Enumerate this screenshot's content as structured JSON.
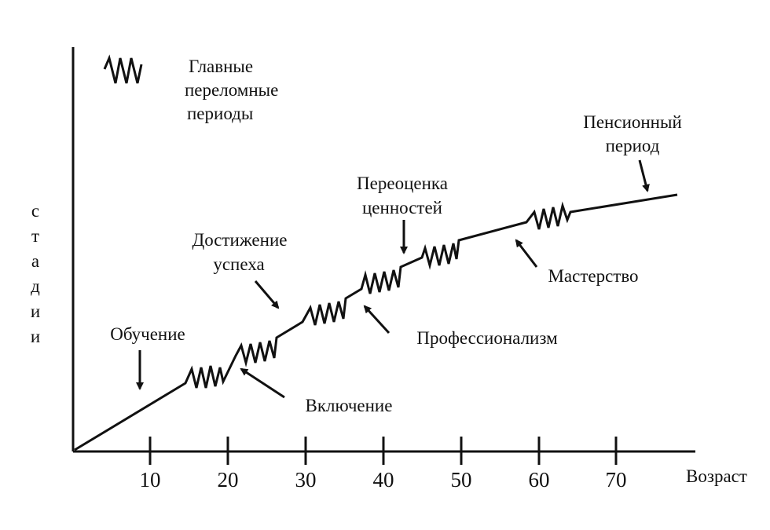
{
  "legend": {
    "lines": [
      "Главные",
      "переломные",
      "периоды"
    ]
  },
  "y_axis_label": [
    "с",
    "т",
    "а",
    "д",
    "и",
    "и"
  ],
  "x_axis_label": "Возраст",
  "x_ticks": [
    "10",
    "20",
    "30",
    "40",
    "50",
    "60",
    "70"
  ],
  "annotations": {
    "obuchenie": [
      "Обучение"
    ],
    "vkluchenie": [
      "Включение"
    ],
    "dostizhenie": [
      "Достижение",
      "успеха"
    ],
    "professionalism": [
      "Профессионализм"
    ],
    "pereotsenka": [
      "Переоценка",
      "ценностей"
    ],
    "masterstvo": [
      "Мастерство"
    ],
    "pension": [
      "Пенсионный",
      "период"
    ]
  }
}
